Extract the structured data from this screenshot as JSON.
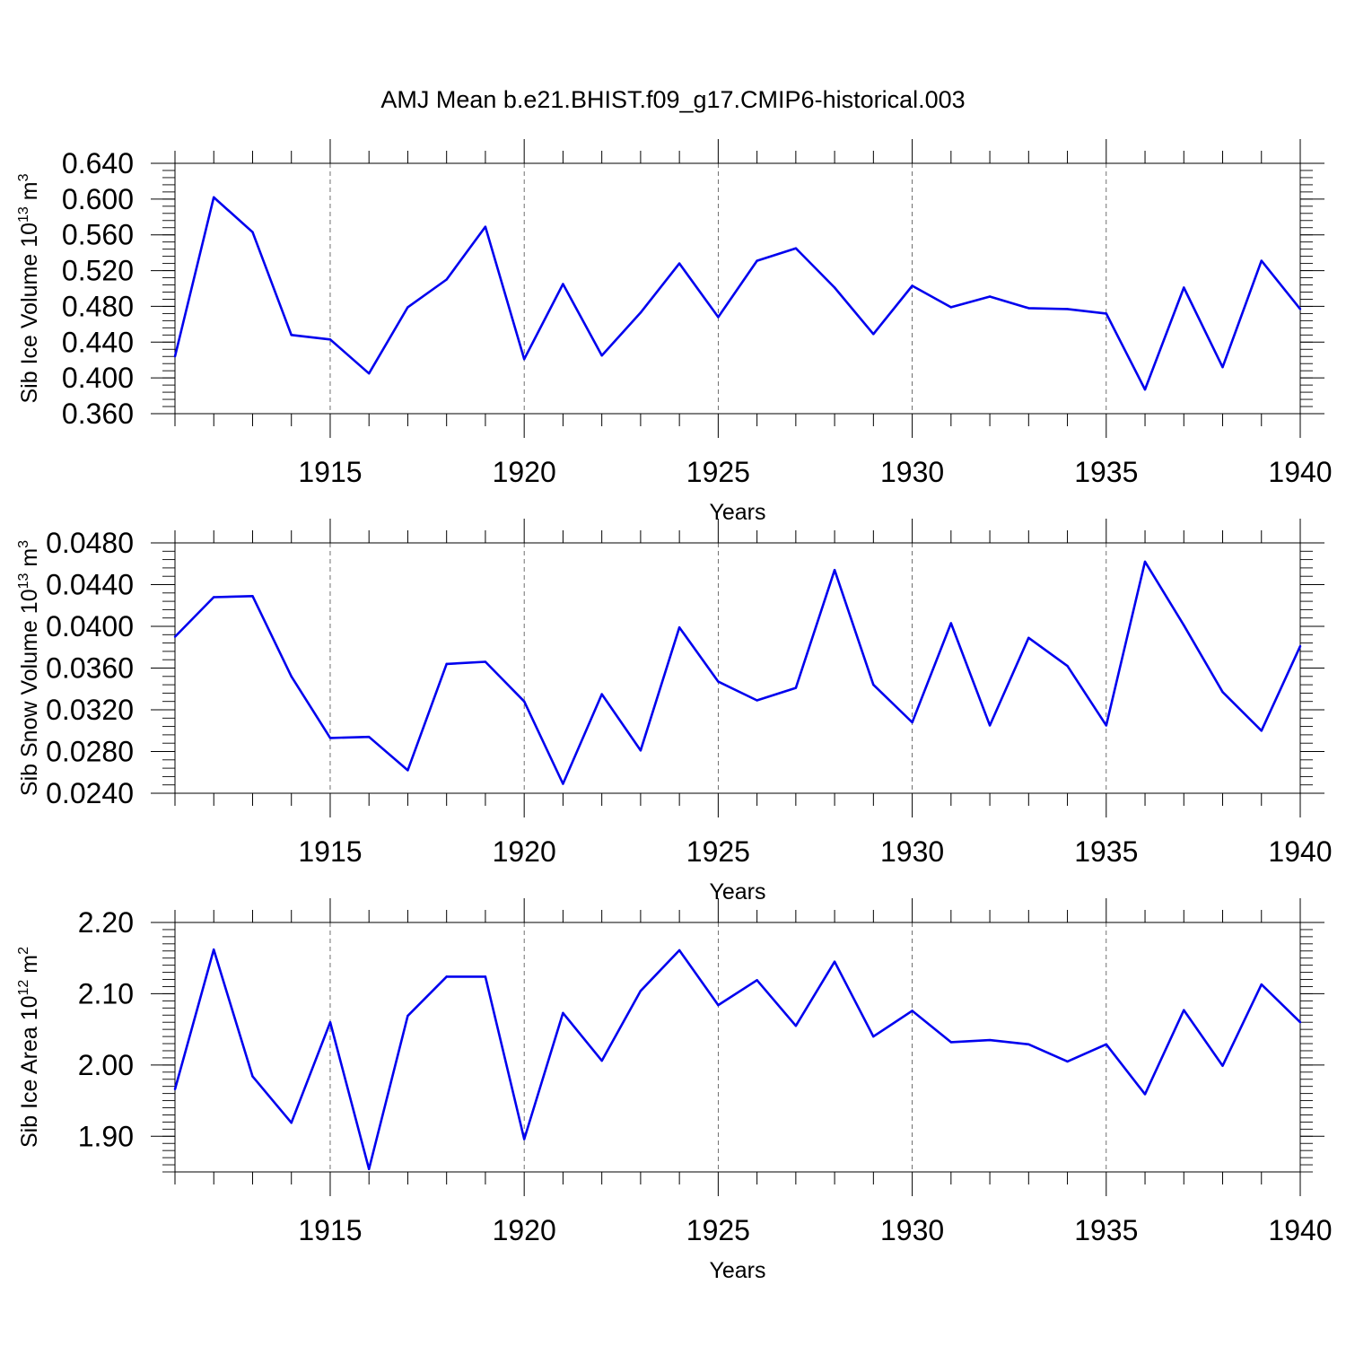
{
  "figure": {
    "title": "AMJ Mean b.e21.BHIST.f09_g17.CMIP6-historical.003",
    "line_color": "#0000ee"
  },
  "chart_data": [
    {
      "type": "line",
      "ylabel": {
        "text": "Sib Ice Volume 10",
        "exp": "13",
        "unit": "m",
        "unit_exp": "3"
      },
      "xlabel": "Years",
      "xlim": [
        1911,
        1940
      ],
      "ylim": [
        0.36,
        0.64
      ],
      "yticks": [
        0.36,
        0.4,
        0.44,
        0.48,
        0.52,
        0.56,
        0.6,
        0.64
      ],
      "ytick_labels": [
        "0.360",
        "0.400",
        "0.440",
        "0.480",
        "0.520",
        "0.560",
        "0.600",
        "0.640"
      ],
      "yminor_step": 0.008,
      "xticks": [
        1915,
        1920,
        1925,
        1930,
        1935,
        1940
      ],
      "xtick_labels": [
        "1915",
        "1920",
        "1925",
        "1930",
        "1935",
        "1940"
      ],
      "grid": "vertical dashed at major x ticks",
      "x": [
        1911,
        1912,
        1913,
        1914,
        1915,
        1916,
        1917,
        1918,
        1919,
        1920,
        1921,
        1922,
        1923,
        1924,
        1925,
        1926,
        1927,
        1928,
        1929,
        1930,
        1931,
        1932,
        1933,
        1934,
        1935,
        1936,
        1937,
        1938,
        1939,
        1940
      ],
      "values": [
        0.424,
        0.602,
        0.563,
        0.448,
        0.443,
        0.405,
        0.479,
        0.51,
        0.569,
        0.421,
        0.505,
        0.425,
        0.473,
        0.528,
        0.468,
        0.531,
        0.545,
        0.501,
        0.449,
        0.503,
        0.479,
        0.491,
        0.478,
        0.477,
        0.472,
        0.387,
        0.501,
        0.412,
        0.531,
        0.477
      ]
    },
    {
      "type": "line",
      "ylabel": {
        "text": "Sib Snow Volume 10",
        "exp": "13",
        "unit": "m",
        "unit_exp": "3"
      },
      "xlabel": "Years",
      "xlim": [
        1911,
        1940
      ],
      "ylim": [
        0.024,
        0.048
      ],
      "yticks": [
        0.024,
        0.028,
        0.032,
        0.036,
        0.04,
        0.044,
        0.048
      ],
      "ytick_labels": [
        "0.0240",
        "0.0280",
        "0.0320",
        "0.0360",
        "0.0400",
        "0.0440",
        "0.0480"
      ],
      "yminor_step": 0.0008,
      "xticks": [
        1915,
        1920,
        1925,
        1930,
        1935,
        1940
      ],
      "xtick_labels": [
        "1915",
        "1920",
        "1925",
        "1930",
        "1935",
        "1940"
      ],
      "grid": "vertical dashed at major x ticks",
      "x": [
        1911,
        1912,
        1913,
        1914,
        1915,
        1916,
        1917,
        1918,
        1919,
        1920,
        1921,
        1922,
        1923,
        1924,
        1925,
        1926,
        1927,
        1928,
        1929,
        1930,
        1931,
        1932,
        1933,
        1934,
        1935,
        1936,
        1937,
        1938,
        1939,
        1940
      ],
      "values": [
        0.039,
        0.0428,
        0.0429,
        0.0352,
        0.0293,
        0.0294,
        0.0262,
        0.0364,
        0.0366,
        0.0328,
        0.0249,
        0.0335,
        0.0281,
        0.0399,
        0.0347,
        0.0329,
        0.0341,
        0.0454,
        0.0344,
        0.0308,
        0.0403,
        0.0305,
        0.0389,
        0.0362,
        0.0305,
        0.0462,
        0.0401,
        0.0337,
        0.03,
        0.0381
      ]
    },
    {
      "type": "line",
      "ylabel": {
        "text": "Sib Ice Area 10",
        "exp": "12",
        "unit": "m",
        "unit_exp": "2"
      },
      "xlabel": "Years",
      "xlim": [
        1911,
        1940
      ],
      "ylim": [
        1.85,
        2.2
      ],
      "yticks": [
        1.9,
        2.0,
        2.1,
        2.2
      ],
      "ytick_labels": [
        "1.90",
        "2.00",
        "2.10",
        "2.20"
      ],
      "yminor_step": 0.01,
      "xticks": [
        1915,
        1920,
        1925,
        1930,
        1935,
        1940
      ],
      "xtick_labels": [
        "1915",
        "1920",
        "1925",
        "1930",
        "1935",
        "1940"
      ],
      "grid": "vertical dashed at major x ticks",
      "x": [
        1911,
        1912,
        1913,
        1914,
        1915,
        1916,
        1917,
        1918,
        1919,
        1920,
        1921,
        1922,
        1923,
        1924,
        1925,
        1926,
        1927,
        1928,
        1929,
        1930,
        1931,
        1932,
        1933,
        1934,
        1935,
        1936,
        1937,
        1938,
        1939,
        1940
      ],
      "values": [
        1.966,
        2.162,
        1.984,
        1.919,
        2.06,
        1.854,
        2.069,
        2.124,
        2.124,
        1.896,
        2.073,
        2.006,
        2.104,
        2.161,
        2.084,
        2.119,
        2.055,
        2.145,
        2.04,
        2.076,
        2.032,
        2.035,
        2.029,
        2.005,
        2.029,
        1.959,
        2.077,
        1.999,
        2.113,
        2.06
      ]
    }
  ]
}
